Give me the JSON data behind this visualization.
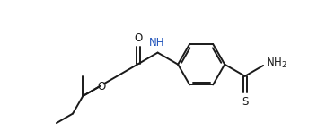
{
  "background_color": "#ffffff",
  "line_color": "#1a1a1a",
  "bond_lw": 1.4,
  "blue_color": "#2255bb",
  "font_size": 8.5,
  "xlim": [
    0,
    10
  ],
  "ylim": [
    0,
    4.0
  ]
}
